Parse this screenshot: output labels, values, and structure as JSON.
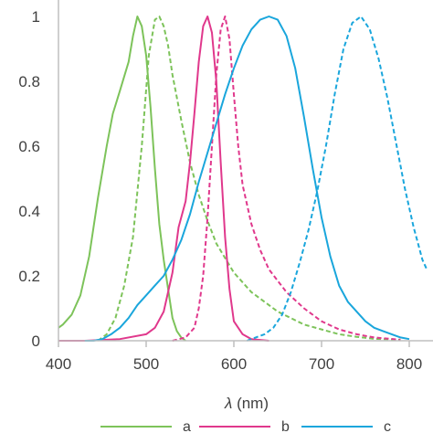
{
  "chart_data": {
    "type": "line",
    "title": "",
    "xlabel_symbol": "λ",
    "xlabel_unit": " (nm)",
    "ylabel": "",
    "xlim": [
      400,
      820
    ],
    "ylim": [
      0,
      1
    ],
    "xticks": [
      400,
      500,
      600,
      700,
      800
    ],
    "yticks": [
      0,
      0.2,
      0.4,
      0.6,
      0.8,
      1
    ],
    "ytick_labels": [
      "0",
      "0.2",
      "0.4",
      "0.6",
      "0.8",
      "1"
    ],
    "xtick_labels": [
      "400",
      "500",
      "600",
      "700",
      "800"
    ],
    "grid": false,
    "legend_position": "bottom",
    "colors": {
      "a": "#7dc35a",
      "b": "#e0388c",
      "c": "#1aa6dc",
      "axis": "#bfbfbf"
    },
    "series": [
      {
        "name": "a",
        "style": "solid",
        "x": [
          400,
          405,
          415,
          425,
          435,
          445,
          455,
          462,
          470,
          480,
          485,
          490,
          495,
          500,
          505,
          510,
          515,
          520,
          525,
          530,
          535,
          540,
          545
        ],
        "y": [
          0.04,
          0.05,
          0.08,
          0.14,
          0.26,
          0.44,
          0.6,
          0.7,
          0.77,
          0.86,
          0.94,
          1.0,
          0.97,
          0.88,
          0.72,
          0.53,
          0.36,
          0.25,
          0.16,
          0.07,
          0.03,
          0.01,
          0.0
        ]
      },
      {
        "name": "a",
        "style": "dashed",
        "x": [
          445,
          455,
          465,
          475,
          485,
          495,
          503,
          510,
          515,
          520,
          525,
          530,
          540,
          550,
          560,
          570,
          580,
          600,
          620,
          650,
          680,
          700,
          720,
          740,
          760,
          790
        ],
        "y": [
          0.0,
          0.02,
          0.07,
          0.17,
          0.32,
          0.6,
          0.88,
          0.99,
          1.0,
          0.97,
          0.91,
          0.82,
          0.68,
          0.55,
          0.45,
          0.37,
          0.3,
          0.21,
          0.15,
          0.09,
          0.05,
          0.035,
          0.02,
          0.012,
          0.006,
          0.003
        ]
      },
      {
        "name": "b",
        "style": "solid",
        "x": [
          400,
          430,
          470,
          500,
          510,
          520,
          530,
          537,
          545,
          550,
          555,
          560,
          565,
          570,
          575,
          580,
          585,
          590,
          595,
          600,
          610,
          620,
          640
        ],
        "y": [
          0.0,
          0.0,
          0.005,
          0.02,
          0.04,
          0.09,
          0.21,
          0.35,
          0.43,
          0.55,
          0.7,
          0.86,
          0.97,
          1.0,
          0.95,
          0.8,
          0.55,
          0.32,
          0.16,
          0.06,
          0.02,
          0.005,
          0.0
        ]
      },
      {
        "name": "b",
        "style": "dashed",
        "x": [
          530,
          545,
          555,
          560,
          565,
          570,
          575,
          580,
          585,
          590,
          595,
          600,
          605,
          610,
          620,
          630,
          640,
          660,
          680,
          700,
          720,
          740,
          760,
          790
        ],
        "y": [
          0.0,
          0.01,
          0.04,
          0.1,
          0.2,
          0.38,
          0.6,
          0.82,
          0.96,
          1.0,
          0.93,
          0.76,
          0.6,
          0.48,
          0.36,
          0.28,
          0.22,
          0.15,
          0.1,
          0.06,
          0.035,
          0.02,
          0.01,
          0.003
        ]
      },
      {
        "name": "c",
        "style": "solid",
        "x": [
          430,
          440,
          450,
          460,
          470,
          480,
          490,
          500,
          510,
          520,
          530,
          540,
          550,
          560,
          570,
          580,
          590,
          600,
          610,
          620,
          630,
          640,
          650,
          660,
          670,
          680,
          690,
          700,
          710,
          720,
          730,
          740,
          750,
          760,
          770,
          780,
          790,
          800
        ],
        "y": [
          0.0,
          0.0,
          0.005,
          0.02,
          0.04,
          0.07,
          0.11,
          0.14,
          0.17,
          0.2,
          0.25,
          0.31,
          0.39,
          0.49,
          0.58,
          0.67,
          0.76,
          0.84,
          0.91,
          0.96,
          0.99,
          1.0,
          0.99,
          0.94,
          0.84,
          0.69,
          0.53,
          0.38,
          0.26,
          0.17,
          0.12,
          0.09,
          0.06,
          0.04,
          0.03,
          0.02,
          0.01,
          0.005
        ]
      },
      {
        "name": "c",
        "style": "dashed",
        "x": [
          615,
          625,
          635,
          645,
          655,
          665,
          675,
          685,
          695,
          705,
          715,
          725,
          735,
          745,
          755,
          765,
          775,
          785,
          795,
          805,
          815,
          820
        ],
        "y": [
          0.0,
          0.01,
          0.02,
          0.04,
          0.08,
          0.15,
          0.24,
          0.34,
          0.46,
          0.6,
          0.76,
          0.9,
          0.98,
          1.0,
          0.96,
          0.87,
          0.75,
          0.61,
          0.47,
          0.35,
          0.25,
          0.22
        ]
      }
    ],
    "legend": [
      {
        "label": "a",
        "color": "#7dc35a"
      },
      {
        "label": "b",
        "color": "#e0388c"
      },
      {
        "label": "c",
        "color": "#1aa6dc"
      }
    ]
  }
}
